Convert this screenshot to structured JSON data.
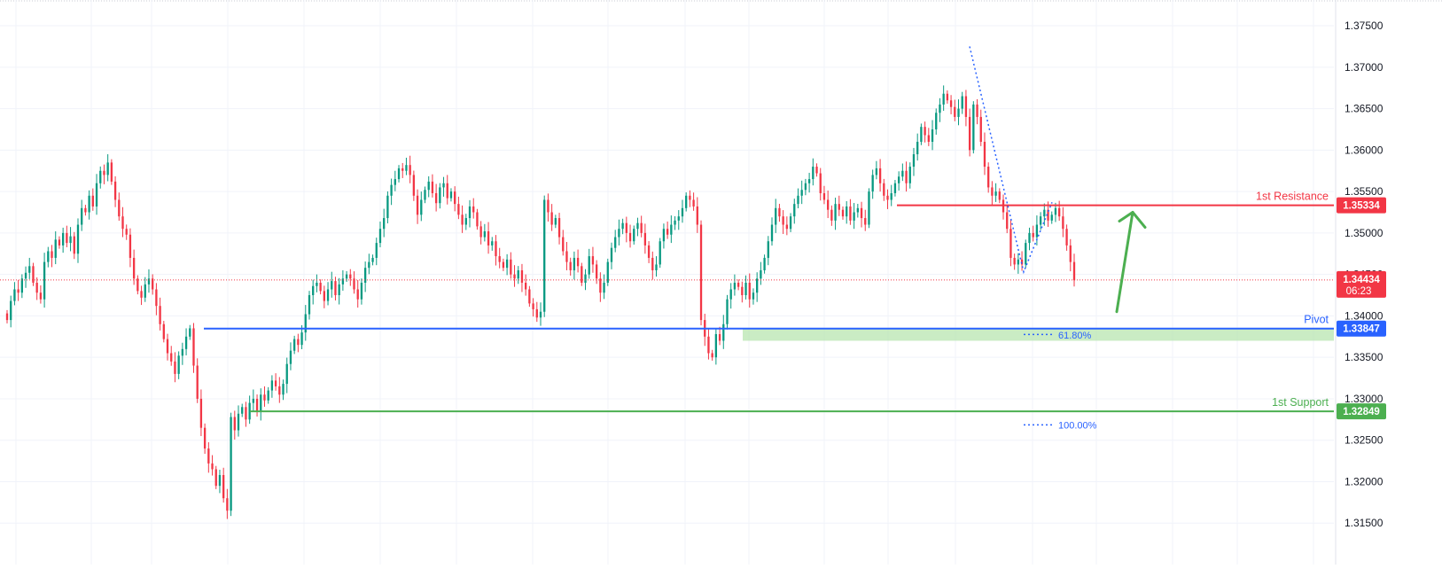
{
  "chart_data": {
    "type": "candlestick",
    "ylim": [
      1.31,
      1.3775
    ],
    "y_ticks": [
      "1.37500",
      "1.37000",
      "1.36500",
      "1.36000",
      "1.35500",
      "1.35000",
      "1.34500",
      "1.34000",
      "1.33500",
      "1.33000",
      "1.32500",
      "1.32000",
      "1.31500"
    ],
    "levels": {
      "resistance": {
        "label": "1st Resistance",
        "value": 1.35334,
        "badge": "1.35334",
        "color": "#f23645"
      },
      "pivot": {
        "label": "Pivot",
        "value": 1.33847,
        "badge": "1.33847",
        "color": "#2962ff"
      },
      "support": {
        "label": "1st Support",
        "value": 1.32849,
        "badge": "1.32849",
        "color": "#4caf50"
      }
    },
    "current_price": {
      "value": 1.34434,
      "badge": "1.34434",
      "countdown": "06:23",
      "color": "#f23645"
    },
    "fib": {
      "levels": [
        {
          "label": "61.80%",
          "value": 1.33847
        },
        {
          "label": "100.00%",
          "value": 1.32849
        }
      ],
      "zone": {
        "from": 1.33847,
        "to": 1.337,
        "color": "#b8e6b0"
      }
    },
    "projection_arrow": {
      "from": 1.3405,
      "to": 1.3525,
      "color": "#4caf50"
    },
    "colors": {
      "up": "#089981",
      "down": "#f23645",
      "grid": "#f0f3fa"
    },
    "candles_close": [
      1.3395,
      1.3418,
      1.3432,
      1.3428,
      1.3445,
      1.3452,
      1.346,
      1.344,
      1.3428,
      1.342,
      1.3465,
      1.3478,
      1.347,
      1.3492,
      1.3485,
      1.35,
      1.3488,
      1.3496,
      1.3475,
      1.351,
      1.353,
      1.3525,
      1.3545,
      1.3532,
      1.356,
      1.3575,
      1.357,
      1.3585,
      1.3562,
      1.354,
      1.352,
      1.3505,
      1.3498,
      1.347,
      1.3445,
      1.343,
      1.3422,
      1.3438,
      1.3445,
      1.3432,
      1.3412,
      1.339,
      1.3372,
      1.3355,
      1.3345,
      1.333,
      1.3352,
      1.336,
      1.3375,
      1.3385,
      1.334,
      1.33,
      1.3265,
      1.324,
      1.3222,
      1.3215,
      1.3195,
      1.3208,
      1.318,
      1.3165,
      1.3278,
      1.3262,
      1.3282,
      1.329,
      1.3275,
      1.3295,
      1.33,
      1.3285,
      1.3305,
      1.3298,
      1.331,
      1.3322,
      1.3315,
      1.3305,
      1.3318,
      1.3342,
      1.3358,
      1.3372,
      1.3365,
      1.338,
      1.3402,
      1.3425,
      1.3436,
      1.344,
      1.343,
      1.3418,
      1.3432,
      1.3442,
      1.3425,
      1.3438,
      1.3445,
      1.345,
      1.3445,
      1.3432,
      1.342,
      1.344,
      1.3458,
      1.3465,
      1.347,
      1.3488,
      1.3505,
      1.3518,
      1.3545,
      1.3558,
      1.3565,
      1.3578,
      1.3575,
      1.3582,
      1.357,
      1.3545,
      1.3522,
      1.354,
      1.3552,
      1.3562,
      1.3548,
      1.3536,
      1.3555,
      1.356,
      1.3542,
      1.355,
      1.3535,
      1.3522,
      1.351,
      1.3518,
      1.3532,
      1.3525,
      1.3508,
      1.3495,
      1.3502,
      1.3485,
      1.349,
      1.3472,
      1.3465,
      1.3458,
      1.3468,
      1.345,
      1.3445,
      1.3455,
      1.344,
      1.3432,
      1.3415,
      1.3408,
      1.3398,
      1.3405,
      1.354,
      1.3525,
      1.351,
      1.3518,
      1.3495,
      1.3478,
      1.3465,
      1.3455,
      1.347,
      1.346,
      1.344,
      1.345,
      1.3472,
      1.3462,
      1.3445,
      1.3428,
      1.344,
      1.3465,
      1.3482,
      1.3495,
      1.3505,
      1.3512,
      1.35,
      1.349,
      1.3505,
      1.3512,
      1.35,
      1.3485,
      1.347,
      1.3455,
      1.3462,
      1.349,
      1.3505,
      1.3498,
      1.351,
      1.3515,
      1.352,
      1.353,
      1.3545,
      1.354,
      1.3532,
      1.351,
      1.3395,
      1.3375,
      1.3355,
      1.335,
      1.3378,
      1.337,
      1.339,
      1.342,
      1.3432,
      1.344,
      1.3435,
      1.3425,
      1.344,
      1.342,
      1.3428,
      1.3445,
      1.3455,
      1.347,
      1.349,
      1.351,
      1.353,
      1.352,
      1.351,
      1.3505,
      1.352,
      1.3535,
      1.3545,
      1.3552,
      1.356,
      1.3565,
      1.358,
      1.3572,
      1.3548,
      1.354,
      1.3528,
      1.3515,
      1.3535,
      1.3528,
      1.352,
      1.3532,
      1.3515,
      1.3525,
      1.353,
      1.3518,
      1.351,
      1.355,
      1.357,
      1.3578,
      1.356,
      1.3545,
      1.354,
      1.3548,
      1.356,
      1.3568,
      1.3575,
      1.356,
      1.358,
      1.3595,
      1.361,
      1.3628,
      1.3618,
      1.361,
      1.3625,
      1.3645,
      1.3655,
      1.3668,
      1.366,
      1.3652,
      1.364,
      1.365,
      1.3665,
      1.364,
      1.36,
      1.3655,
      1.364,
      1.361,
      1.358,
      1.3555,
      1.3545,
      1.355,
      1.354,
      1.3525,
      1.3505,
      1.347,
      1.3462,
      1.3468,
      1.3462,
      1.3488,
      1.35,
      1.3495,
      1.351,
      1.352,
      1.3528,
      1.3515,
      1.3522,
      1.353,
      1.352,
      1.3505,
      1.3485,
      1.3465,
      1.3443
    ]
  }
}
